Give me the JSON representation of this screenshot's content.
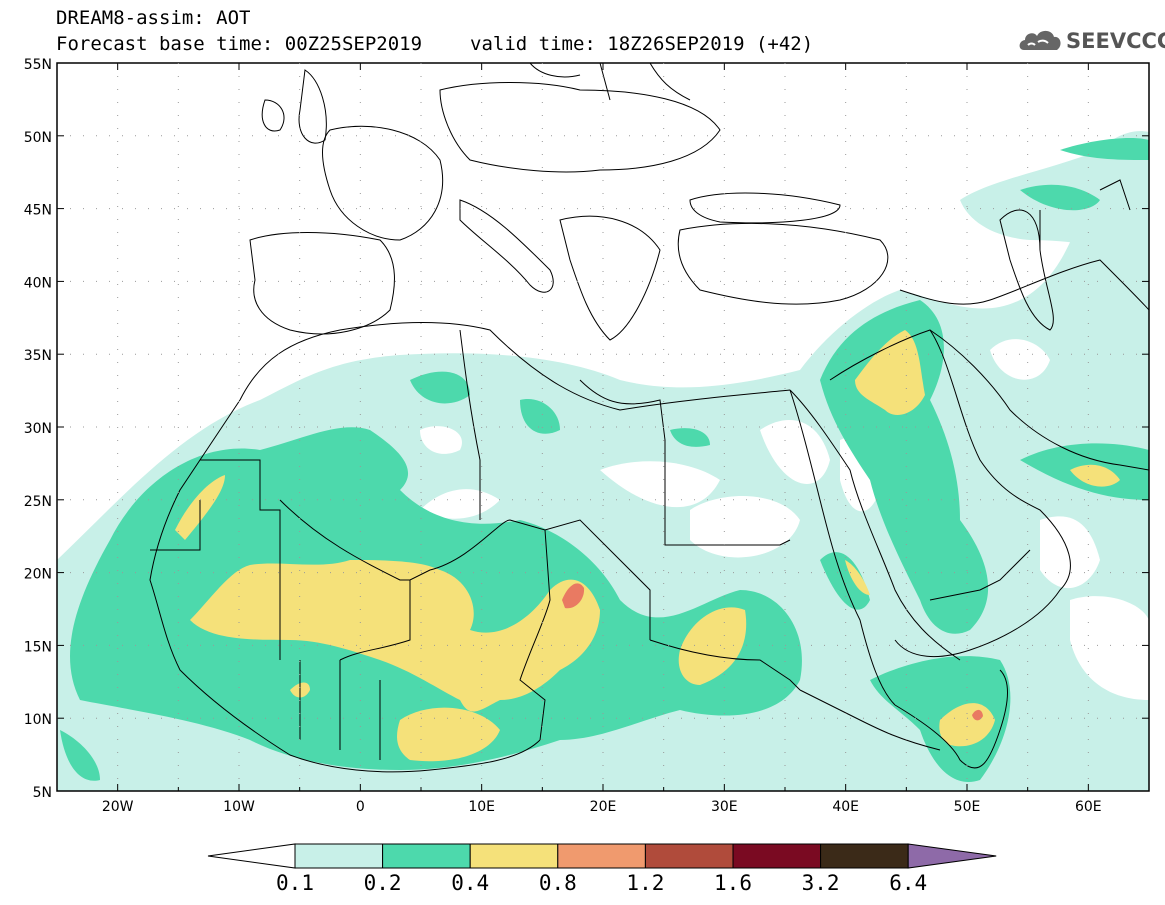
{
  "header": {
    "line1": "DREAM8-assim: AOT",
    "line2": "Forecast base time: 00Z25SEP2019",
    "valid": "valid time: 18Z26SEP2019 (+42)",
    "logo_text": "SEEVCCC"
  },
  "axes": {
    "lat_labels": [
      "55N",
      "50N",
      "45N",
      "40N",
      "35N",
      "30N",
      "25N",
      "20N",
      "15N",
      "10N",
      "5N"
    ],
    "lon_labels": [
      "20W",
      "10W",
      "0",
      "10E",
      "20E",
      "30E",
      "40E",
      "50E",
      "60E"
    ]
  },
  "colorbar": {
    "levels": [
      "0.1",
      "0.2",
      "0.4",
      "0.8",
      "1.2",
      "1.6",
      "3.2",
      "6.4"
    ],
    "colors": [
      "#ffffff",
      "#c8f0e8",
      "#4dd9ac",
      "#f5e17a",
      "#f09a6e",
      "#b04b3b",
      "#7a0a22",
      "#3b2a18",
      "#8e6aa8"
    ]
  },
  "map": {
    "bounds": {
      "lon_min": -25,
      "lon_max": 65,
      "lat_min": 5,
      "lat_max": 55
    },
    "fill_colors": {
      "light": "#c8f0e8",
      "mid": "#4dd9ac",
      "high": "#f5e17a",
      "vhigh": "#e97a62"
    }
  }
}
